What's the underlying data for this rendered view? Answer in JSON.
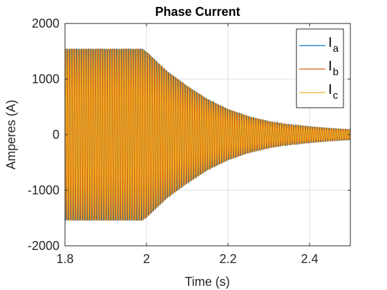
{
  "chart_data": {
    "type": "line",
    "title": "Phase Current",
    "xlabel": "Time (s)",
    "ylabel": "Amperes (A)",
    "xlim": [
      1.8,
      2.5
    ],
    "ylim": [
      -2000,
      2000
    ],
    "xticks": [
      1.8,
      2.0,
      2.2,
      2.4
    ],
    "xtick_labels": [
      "1.8",
      "2",
      "2.2",
      "2.4"
    ],
    "yticks": [
      -2000,
      -1000,
      0,
      1000,
      2000
    ],
    "ytick_labels": [
      "-2000",
      "-1000",
      "0",
      "1000",
      "2000"
    ],
    "grid": true,
    "legend_position": "top-right",
    "series": [
      {
        "name": "I_a",
        "legend_main": "I",
        "legend_sub": "a",
        "color": "#0072BD",
        "phase_deg": 0,
        "envelope": {
          "time": [
            1.8,
            1.99,
            2.0,
            2.05,
            2.1,
            2.15,
            2.2,
            2.25,
            2.3,
            2.35,
            2.4,
            2.45,
            2.5
          ],
          "peak": [
            1550,
            1550,
            1500,
            1150,
            880,
            640,
            460,
            330,
            240,
            180,
            140,
            110,
            90
          ]
        }
      },
      {
        "name": "I_b",
        "legend_main": "I",
        "legend_sub": "b",
        "color": "#D95319",
        "phase_deg": -120,
        "envelope": {
          "time": [
            1.8,
            1.99,
            2.0,
            2.05,
            2.1,
            2.15,
            2.2,
            2.25,
            2.3,
            2.35,
            2.4,
            2.45,
            2.5
          ],
          "peak": [
            1550,
            1550,
            1500,
            1150,
            880,
            640,
            460,
            330,
            240,
            180,
            140,
            110,
            90
          ]
        }
      },
      {
        "name": "I_c",
        "legend_main": "I",
        "legend_sub": "c",
        "color": "#EDB120",
        "phase_deg": 120,
        "envelope": {
          "time": [
            1.8,
            1.99,
            2.0,
            2.05,
            2.1,
            2.15,
            2.2,
            2.25,
            2.3,
            2.35,
            2.4,
            2.45,
            2.5
          ],
          "peak": [
            1550,
            1550,
            1500,
            1150,
            880,
            640,
            460,
            330,
            240,
            180,
            140,
            110,
            90
          ]
        }
      }
    ]
  }
}
